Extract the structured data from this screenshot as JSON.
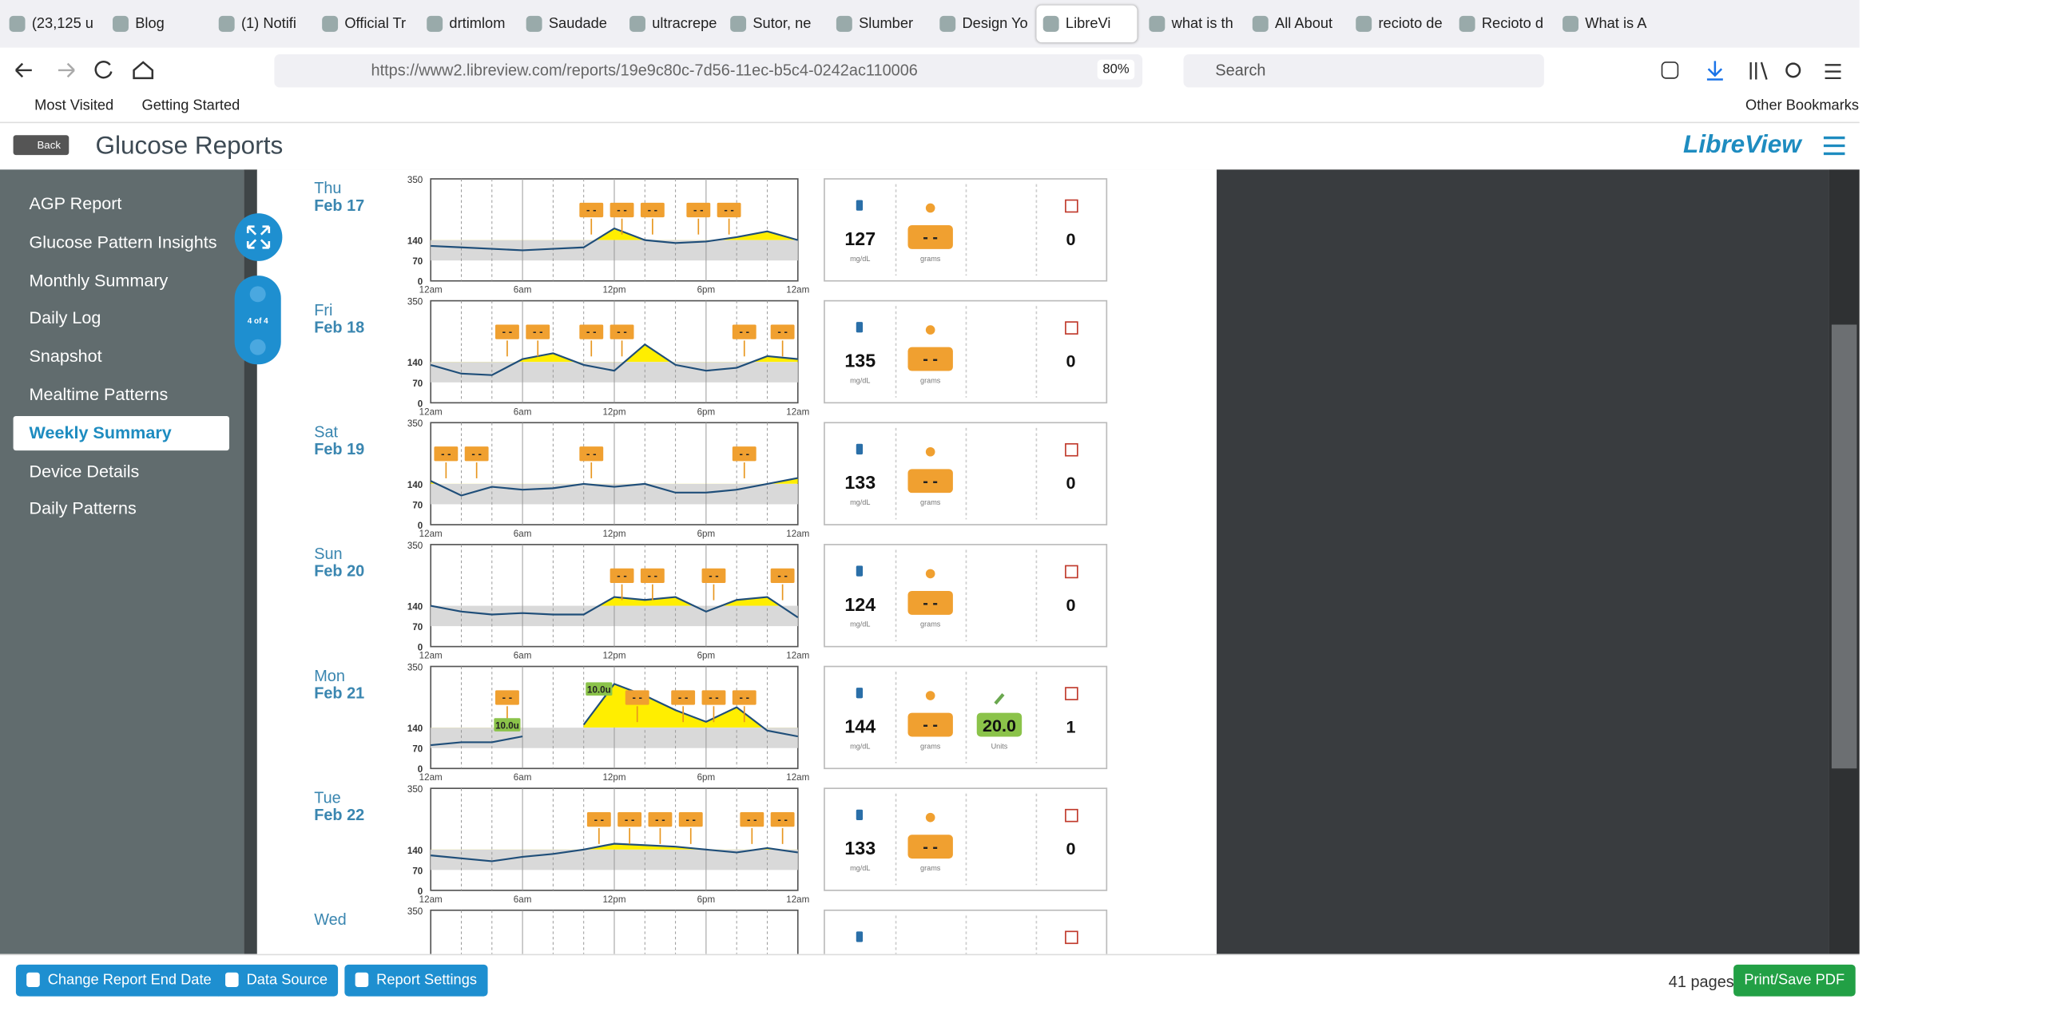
{
  "browser": {
    "tabs": [
      "(23,125 u",
      "Blog",
      "(1) Notifi",
      "Official Tr",
      "drtimlom",
      "Saudade",
      "ultracrepe",
      "Sutor, ne",
      "Slumber",
      "Design Yo",
      "LibreVi",
      "what is th",
      "All About",
      "recioto de",
      "Recioto d",
      "What is A"
    ],
    "active_tab": 10,
    "url": "https://www2.libreview.com/reports/19e9c80c-7d56-11ec-b5c4-0242ac110006",
    "zoom": "80%",
    "search": "Search",
    "bookmarks": [
      "Most Visited",
      "Getting Started"
    ],
    "other_bookmarks": "Other Bookmarks"
  },
  "header": {
    "back": "Back",
    "title": "Glucose Reports",
    "logo": "LibreView"
  },
  "nav": {
    "items": [
      "AGP Report",
      "Glucose Pattern Insights",
      "Monthly Summary",
      "Daily Log",
      "Snapshot",
      "Mealtime Patterns",
      "Weekly Summary",
      "Device Details",
      "Daily Patterns"
    ],
    "active": 6
  },
  "pager": "4 of 4",
  "report": {
    "ylim": [
      0,
      350
    ],
    "yticks": [
      0,
      70,
      140,
      350
    ],
    "target": [
      70,
      140
    ],
    "xlim": [
      0,
      24
    ],
    "xticks": [
      {
        "value": 0,
        "label": "12am"
      },
      {
        "value": 6,
        "label": "6am"
      },
      {
        "value": 12,
        "label": "12pm"
      },
      {
        "value": 18,
        "label": "6pm"
      },
      {
        "value": 24,
        "label": "12am"
      }
    ],
    "hours": [
      0,
      2,
      4,
      6,
      8,
      10,
      12,
      14,
      16,
      18,
      20,
      22,
      24
    ],
    "carb_marker": "- -",
    "glucose_unit": "mg/dL",
    "carbs_unit": "grams",
    "insulin_unit": "Units",
    "days": [
      {
        "day": "Thu",
        "date": "Feb 17",
        "curve": [
          120,
          115,
          110,
          105,
          110,
          115,
          180,
          140,
          130,
          135,
          150,
          170,
          140
        ],
        "meals": [
          10.5,
          12.5,
          14.5,
          17.5,
          19.5
        ],
        "glucose": 127,
        "carbs": "- -",
        "events": 0
      },
      {
        "day": "Fri",
        "date": "Feb 18",
        "curve": [
          130,
          100,
          95,
          150,
          170,
          130,
          110,
          200,
          130,
          110,
          120,
          160,
          150
        ],
        "meals": [
          5,
          7,
          10.5,
          12.5,
          20.5,
          23
        ],
        "glucose": 135,
        "carbs": "- -",
        "events": 0
      },
      {
        "day": "Sat",
        "date": "Feb 19",
        "curve": [
          150,
          100,
          130,
          120,
          125,
          140,
          130,
          140,
          110,
          110,
          120,
          140,
          160
        ],
        "meals": [
          1,
          3,
          10.5,
          20.5
        ],
        "glucose": 133,
        "carbs": "- -",
        "events": 0
      },
      {
        "day": "Sun",
        "date": "Feb 20",
        "curve": [
          140,
          120,
          110,
          115,
          110,
          110,
          170,
          160,
          170,
          120,
          160,
          170,
          100
        ],
        "meals": [
          12.5,
          14.5,
          18.5,
          23
        ],
        "glucose": 124,
        "carbs": "- -",
        "events": 0
      },
      {
        "day": "Mon",
        "date": "Feb 21",
        "curve": [
          80,
          90,
          90,
          110,
          null,
          150,
          290,
          250,
          200,
          160,
          210,
          130,
          110
        ],
        "meals": [
          5,
          13.5,
          16.5,
          18.5,
          20.5
        ],
        "insulin_marks": [
          {
            "hour": 5,
            "label": "10.0u"
          },
          {
            "hour": 11,
            "label": "10.0u"
          }
        ],
        "glucose": 144,
        "carbs": "- -",
        "insulin": "20.0",
        "events": 1
      },
      {
        "day": "Tue",
        "date": "Feb 22",
        "curve": [
          120,
          110,
          100,
          115,
          125,
          140,
          160,
          155,
          150,
          140,
          130,
          145,
          130
        ],
        "meals": [
          11,
          13,
          15,
          17,
          21,
          23
        ],
        "glucose": 133,
        "carbs": "- -",
        "events": 0
      },
      {
        "day": "Wed"
      }
    ]
  },
  "footer": {
    "buttons": [
      "Change Report End Date",
      "Data Source",
      "Report Settings"
    ],
    "pages": "41 pages",
    "print": "Print/Save PDF"
  }
}
